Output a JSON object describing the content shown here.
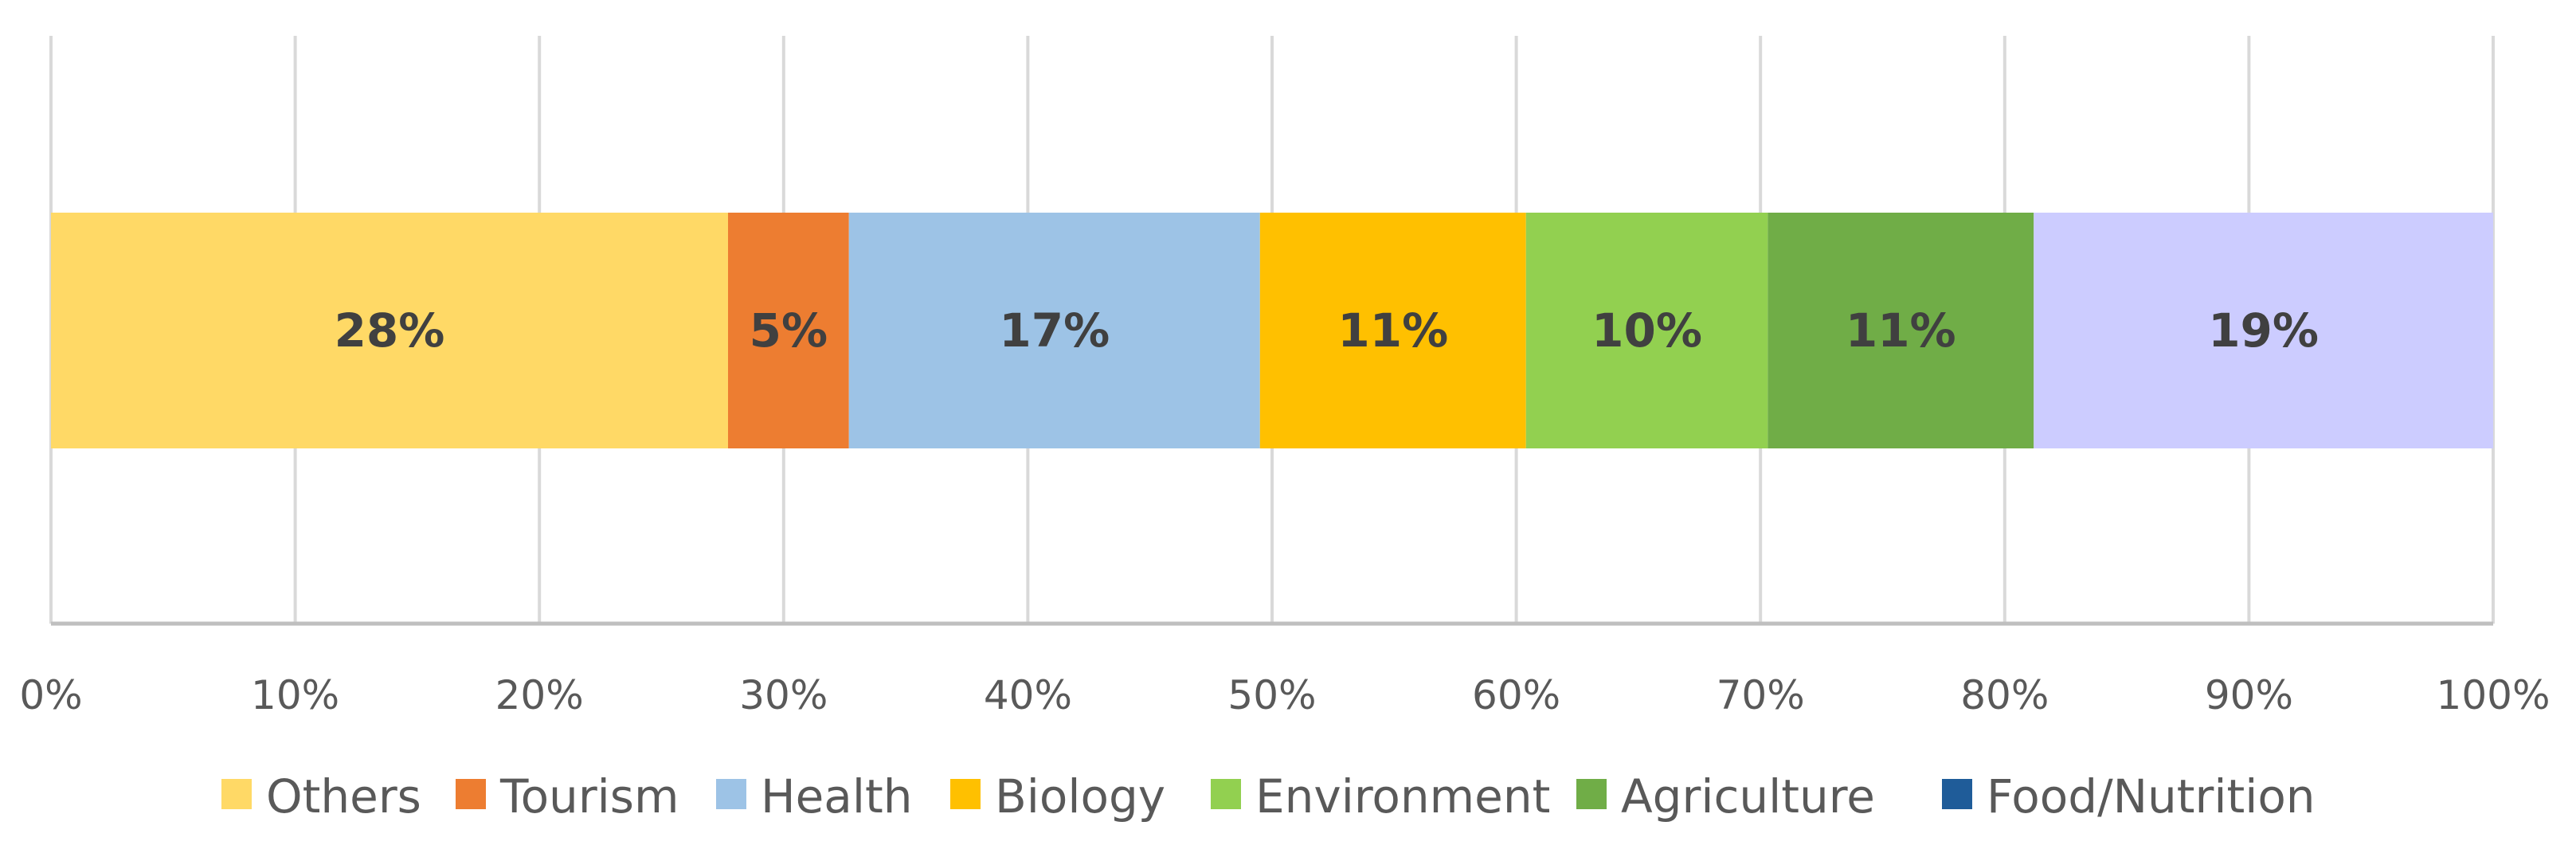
{
  "chart_data": {
    "type": "bar",
    "orientation": "horizontal-stacked-100",
    "categories": [
      ""
    ],
    "series": [
      {
        "name": "Others",
        "values": [
          28
        ],
        "label": "28%",
        "color": "#FFD966"
      },
      {
        "name": "Tourism",
        "values": [
          5
        ],
        "label": "5%",
        "color": "#ED7D31"
      },
      {
        "name": "Health",
        "values": [
          17
        ],
        "label": "17%",
        "color": "#9DC3E6"
      },
      {
        "name": "Biology",
        "values": [
          11
        ],
        "label": "11%",
        "color": "#FFC000"
      },
      {
        "name": "Environment",
        "values": [
          10
        ],
        "label": "10%",
        "color": "#92D050"
      },
      {
        "name": "Agriculture",
        "values": [
          11
        ],
        "label": "11%",
        "color": "#70AD47"
      },
      {
        "name": "Food/Nutrition",
        "values": [
          0
        ],
        "label": "",
        "color": "#1F5C99"
      },
      {
        "name": "",
        "values": [
          19
        ],
        "label": "19%",
        "color": "#CCCCFF"
      }
    ],
    "xlim": [
      0,
      100
    ],
    "x_ticks": [
      "0%",
      "10%",
      "20%",
      "30%",
      "40%",
      "50%",
      "60%",
      "70%",
      "80%",
      "90%",
      "100%"
    ],
    "grid": true,
    "legend_position": "bottom",
    "title": "",
    "xlabel": "",
    "ylabel": ""
  }
}
